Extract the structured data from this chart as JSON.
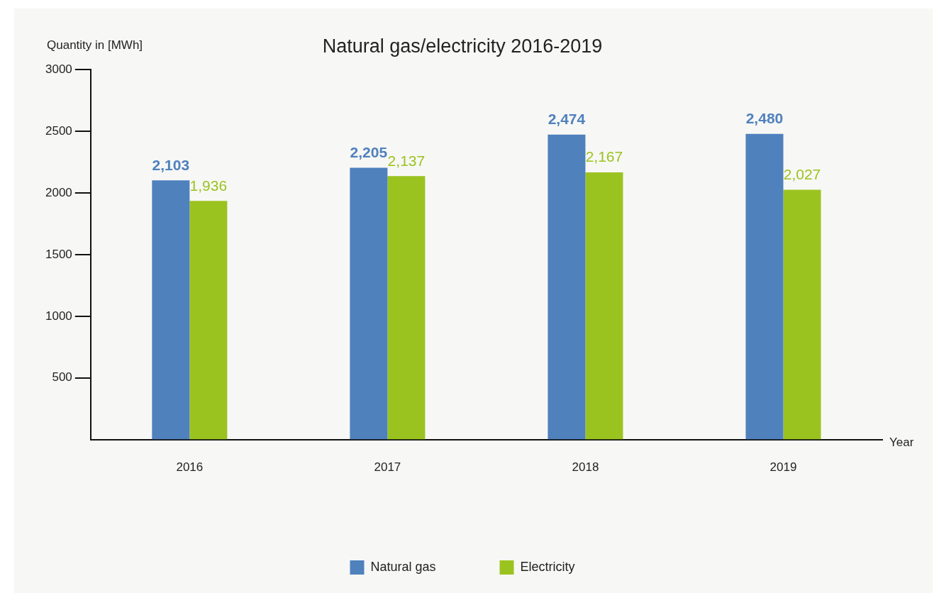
{
  "chart_data": {
    "type": "bar",
    "title": "Natural gas/electricity 2016-2019",
    "xlabel": "Year",
    "ylabel": "Quantity in [MWh]",
    "categories": [
      "2016",
      "2017",
      "2018",
      "2019"
    ],
    "series": [
      {
        "name": "Natural gas",
        "color": "#4f81bd",
        "values": [
          2103,
          2205,
          2474,
          2480
        ],
        "value_labels": [
          "2,103",
          "2,205",
          "2,474",
          "2,480"
        ]
      },
      {
        "name": "Electricity",
        "color": "#9bc31f",
        "values": [
          1936,
          2137,
          2167,
          2027
        ],
        "value_labels": [
          "1,936",
          "2,137",
          "2,167",
          "2,027"
        ]
      }
    ],
    "ylim": [
      0,
      3000
    ],
    "yticks": [
      500,
      1000,
      1500,
      2000,
      2500,
      3000
    ],
    "grid": false,
    "legend": "bottom"
  }
}
